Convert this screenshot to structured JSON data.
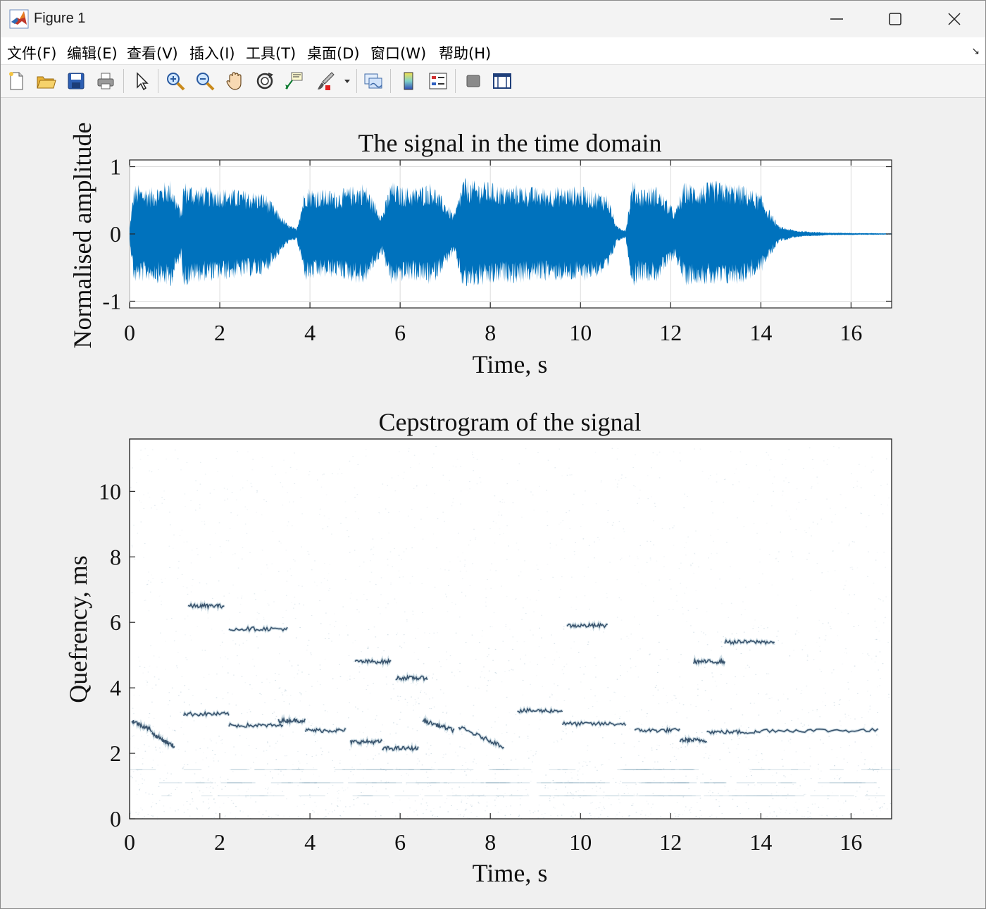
{
  "window": {
    "title": "Figure 1",
    "controls": {
      "minimize": "minimize",
      "maximize": "maximize",
      "close": "close"
    }
  },
  "menu": {
    "items": [
      "文件(F)",
      "编辑(E)",
      "查看(V)",
      "插入(I)",
      "工具(T)",
      "桌面(D)",
      "窗口(W)",
      "帮助(H)"
    ]
  },
  "toolbar": {
    "icons": [
      "new-figure-icon",
      "open-file-icon",
      "save-icon",
      "print-icon",
      "edit-plot-arrow-icon",
      "zoom-in-icon",
      "zoom-out-icon",
      "pan-hand-icon",
      "rotate-3d-icon",
      "data-cursor-icon",
      "brush-icon",
      "link-plot-icon",
      "colorbar-icon",
      "legend-icon",
      "hide-plot-tools-icon",
      "show-plot-tools-icon"
    ]
  },
  "colors": {
    "signal": "#0072bd",
    "cepstrum_dark": "#1f3b57",
    "axes": "#262626",
    "grid": "#dcdcdc"
  },
  "chart_data": [
    {
      "type": "line",
      "title": "The signal in the time domain",
      "xlabel": "Time, s",
      "ylabel": "Normalised amplitude",
      "xlim": [
        0,
        16.9
      ],
      "ylim": [
        -1.1,
        1.1
      ],
      "xticks": [
        "0",
        "2",
        "4",
        "6",
        "8",
        "10",
        "12",
        "14",
        "16"
      ],
      "yticks": [
        "-1",
        "0",
        "1"
      ],
      "grid": true,
      "series": [
        {
          "envelope_time_s": [
            0,
            0.1,
            0.5,
            0.9,
            1.15,
            1.2,
            1.5,
            2.0,
            2.5,
            3.0,
            3.5,
            3.7,
            3.9,
            4.2,
            4.6,
            5.2,
            5.6,
            5.8,
            6.0,
            6.3,
            6.7,
            7.2,
            7.4,
            7.6,
            8.0,
            8.3,
            8.6,
            9.0,
            10.0,
            10.6,
            10.8,
            11.0,
            11.15,
            11.3,
            11.7,
            12.1,
            12.3,
            12.6,
            13.0,
            13.6,
            14.0,
            14.2,
            14.4,
            14.8,
            15.5,
            16.9
          ],
          "envelope_amplitude": [
            0.1,
            0.75,
            0.7,
            0.82,
            0.35,
            0.8,
            0.72,
            0.7,
            0.66,
            0.62,
            0.15,
            0.08,
            0.72,
            0.68,
            0.65,
            0.78,
            0.3,
            0.8,
            0.72,
            0.7,
            0.78,
            0.3,
            0.85,
            0.8,
            0.78,
            0.72,
            0.75,
            0.7,
            0.72,
            0.6,
            0.12,
            0.06,
            0.82,
            0.7,
            0.72,
            0.35,
            0.78,
            0.74,
            0.8,
            0.74,
            0.6,
            0.35,
            0.12,
            0.05,
            0.02,
            0.01
          ]
        }
      ]
    },
    {
      "type": "heatmap",
      "title": "Cepstrogram of the signal",
      "xlabel": "Time, s",
      "ylabel": "Quefrency, ms",
      "xlim": [
        0,
        16.9
      ],
      "ylim": [
        0,
        11.6
      ],
      "xticks": [
        "0",
        "2",
        "4",
        "6",
        "8",
        "10",
        "12",
        "14",
        "16"
      ],
      "yticks": [
        "0",
        "2",
        "4",
        "6",
        "8",
        "10"
      ],
      "grid": false,
      "ridges": [
        {
          "t0": 0.05,
          "t1": 0.5,
          "q0": 3.0,
          "q1": 2.7
        },
        {
          "t0": 0.5,
          "t1": 1.0,
          "q0": 2.6,
          "q1": 2.2
        },
        {
          "t0": 1.2,
          "t1": 2.2,
          "q0": 3.2,
          "q1": 3.2
        },
        {
          "t0": 2.2,
          "t1": 3.4,
          "q0": 2.85,
          "q1": 2.85
        },
        {
          "t0": 3.3,
          "t1": 3.9,
          "q0": 3.0,
          "q1": 3.0
        },
        {
          "t0": 3.9,
          "t1": 4.8,
          "q0": 2.7,
          "q1": 2.7
        },
        {
          "t0": 4.9,
          "t1": 5.6,
          "q0": 2.35,
          "q1": 2.35
        },
        {
          "t0": 5.6,
          "t1": 6.4,
          "q0": 2.15,
          "q1": 2.15
        },
        {
          "t0": 6.5,
          "t1": 7.2,
          "q0": 3.0,
          "q1": 2.7
        },
        {
          "t0": 7.3,
          "t1": 8.3,
          "q0": 2.8,
          "q1": 2.2
        },
        {
          "t0": 8.6,
          "t1": 9.6,
          "q0": 3.3,
          "q1": 3.3
        },
        {
          "t0": 9.6,
          "t1": 11.0,
          "q0": 2.9,
          "q1": 2.9
        },
        {
          "t0": 11.2,
          "t1": 12.2,
          "q0": 2.7,
          "q1": 2.7
        },
        {
          "t0": 12.2,
          "t1": 12.8,
          "q0": 2.4,
          "q1": 2.4
        },
        {
          "t0": 12.8,
          "t1": 14.0,
          "q0": 2.65,
          "q1": 2.65
        },
        {
          "t0": 14.0,
          "t1": 16.6,
          "q0": 2.7,
          "q1": 2.7
        },
        {
          "t0": 2.2,
          "t1": 3.5,
          "q0": 5.8,
          "q1": 5.8
        },
        {
          "t0": 5.0,
          "t1": 5.8,
          "q0": 4.8,
          "q1": 4.8
        },
        {
          "t0": 5.9,
          "t1": 6.6,
          "q0": 4.3,
          "q1": 4.3
        },
        {
          "t0": 9.7,
          "t1": 10.6,
          "q0": 5.9,
          "q1": 5.9
        },
        {
          "t0": 12.5,
          "t1": 13.2,
          "q0": 4.8,
          "q1": 4.8
        },
        {
          "t0": 13.2,
          "t1": 14.3,
          "q0": 5.4,
          "q1": 5.4
        },
        {
          "t0": 1.3,
          "t1": 2.1,
          "q0": 6.5,
          "q1": 6.5
        }
      ]
    }
  ]
}
